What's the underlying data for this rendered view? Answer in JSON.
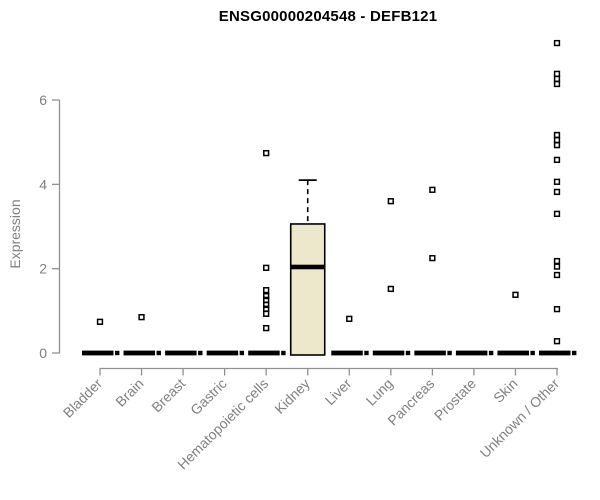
{
  "chart_data": {
    "type": "boxplot",
    "title": "ENSG00000204548 - DEFB121",
    "ylabel": "Expression",
    "xlabel": "",
    "yticks": [
      0,
      2,
      4,
      6
    ],
    "ylim": [
      0,
      7.6
    ],
    "grid": false,
    "legend": "none",
    "box_fill_color": "#EDE8CC",
    "box_stroke_color": "#000000",
    "axis_line_color": "#909090",
    "tick_label_color": "#808080",
    "title_color": "#000000",
    "categories": [
      "Bladder",
      "Brain",
      "Breast",
      "Gastric",
      "Hematopoietic cells",
      "Kidney",
      "Liver",
      "Lung",
      "Pancreas",
      "Prostate",
      "Skin",
      "Unknown / Other"
    ],
    "boxes": [
      {
        "category": "Bladder",
        "q1": 0,
        "median": 0,
        "q3": 0,
        "whisker_low": 0,
        "whisker_high": 0,
        "outliers": [
          0.74
        ]
      },
      {
        "category": "Brain",
        "q1": 0,
        "median": 0,
        "q3": 0,
        "whisker_low": 0,
        "whisker_high": 0,
        "outliers": [
          0.85
        ]
      },
      {
        "category": "Breast",
        "q1": 0,
        "median": 0,
        "q3": 0,
        "whisker_low": 0,
        "whisker_high": 0,
        "outliers": []
      },
      {
        "category": "Gastric",
        "q1": 0,
        "median": 0,
        "q3": 0,
        "whisker_low": 0,
        "whisker_high": 0,
        "outliers": []
      },
      {
        "category": "Hematopoietic cells",
        "q1": 0,
        "median": 0,
        "q3": 0,
        "whisker_low": 0,
        "whisker_high": 0,
        "outliers": [
          4.74,
          2.02,
          1.49,
          1.35,
          1.26,
          1.14,
          1.05,
          0.93,
          0.59
        ]
      },
      {
        "category": "Kidney",
        "q1": 0,
        "median": 2.04,
        "q3": 3.06,
        "whisker_low": 0,
        "whisker_high": 4.1,
        "outliers": []
      },
      {
        "category": "Liver",
        "q1": 0,
        "median": 0,
        "q3": 0,
        "whisker_low": 0,
        "whisker_high": 0,
        "outliers": [
          0.81
        ]
      },
      {
        "category": "Lung",
        "q1": 0,
        "median": 0,
        "q3": 0,
        "whisker_low": 0,
        "whisker_high": 0,
        "outliers": [
          3.6,
          1.52
        ]
      },
      {
        "category": "Pancreas",
        "q1": 0,
        "median": 0,
        "q3": 0,
        "whisker_low": 0,
        "whisker_high": 0,
        "outliers": [
          3.87,
          2.25
        ]
      },
      {
        "category": "Prostate",
        "q1": 0,
        "median": 0,
        "q3": 0,
        "whisker_low": 0,
        "whisker_high": 0,
        "outliers": []
      },
      {
        "category": "Skin",
        "q1": 0,
        "median": 0,
        "q3": 0,
        "whisker_low": 0,
        "whisker_high": 0,
        "outliers": [
          1.38
        ]
      },
      {
        "category": "Unknown / Other",
        "q1": 0,
        "median": 0,
        "q3": 0,
        "whisker_low": 0,
        "whisker_high": 0,
        "outliers": [
          7.35,
          6.62,
          6.5,
          6.38,
          5.17,
          5.05,
          4.93,
          4.58,
          4.06,
          3.82,
          3.3,
          2.18,
          2.05,
          1.85,
          1.04,
          0.28
        ]
      }
    ]
  }
}
